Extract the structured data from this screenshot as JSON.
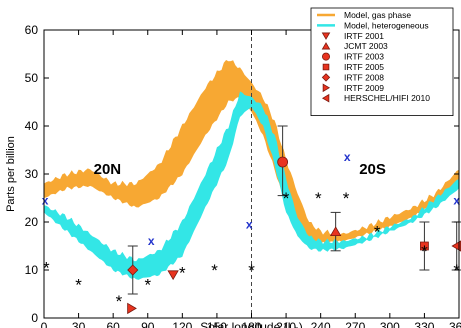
{
  "chart_data": {
    "type": "area",
    "xlabel": "Solar longitude (Lₛ)",
    "ylabel": "Parts per billion",
    "xlim": [
      0,
      360
    ],
    "ylim": [
      0,
      60
    ],
    "xticks": [
      0,
      30,
      60,
      90,
      120,
      150,
      180,
      210,
      240,
      270,
      300,
      330,
      360
    ],
    "yticks": [
      0,
      10,
      20,
      30,
      40,
      50,
      60
    ],
    "grid": false,
    "legend_position": "top-right",
    "colors": {
      "gas_band": "#F7A833",
      "het_band": "#33E6E6",
      "obs_marker": "#E8331F",
      "x_marker": "#2233CC",
      "star_marker": "#000000",
      "divider": "#444444"
    },
    "annotations": [
      {
        "text": "20N",
        "x": 55,
        "y": 30
      },
      {
        "text": "20S",
        "x": 285,
        "y": 30
      }
    ],
    "divider_x": 180,
    "series": [
      {
        "name": "Model, gas phase",
        "kind": "band",
        "x": [
          0,
          20,
          40,
          60,
          80,
          100,
          120,
          140,
          160,
          170,
          180,
          190,
          200,
          210,
          220,
          230,
          240,
          260,
          280,
          300,
          320,
          340,
          360
        ],
        "upper": [
          28,
          30,
          31,
          28,
          28,
          32,
          40,
          48,
          54,
          52,
          49,
          46,
          41,
          33,
          26,
          20,
          18,
          17.5,
          19,
          21,
          23,
          26,
          31
        ],
        "lower": [
          25,
          27,
          27.5,
          25,
          23,
          25,
          30,
          38,
          45,
          46,
          43,
          38,
          31,
          23,
          17,
          15.5,
          15.5,
          16,
          17.5,
          19,
          21,
          24,
          28
        ]
      },
      {
        "name": "Model, heterogeneous",
        "kind": "band",
        "x": [
          0,
          20,
          40,
          60,
          80,
          100,
          120,
          140,
          160,
          170,
          180,
          190,
          200,
          210,
          220,
          230,
          240,
          260,
          280,
          300,
          320,
          340,
          360
        ],
        "upper": [
          23.5,
          21,
          17.5,
          14,
          12,
          14,
          20,
          30,
          40,
          47,
          46,
          44,
          38,
          29,
          21,
          17,
          16,
          16,
          17,
          19,
          21,
          25,
          29
        ],
        "lower": [
          22,
          18,
          14,
          10,
          8,
          9,
          13,
          23,
          33,
          42,
          44,
          40,
          32,
          22,
          17,
          14.5,
          14,
          14.5,
          16,
          18,
          20,
          23,
          27
        ]
      },
      {
        "name": "IRTF 2001",
        "kind": "marker",
        "shape": "triangle-down",
        "points": [
          {
            "x": 112,
            "y": 9,
            "yerr_low": 0,
            "yerr_high": 0
          }
        ]
      },
      {
        "name": "JCMT 2003",
        "kind": "marker",
        "shape": "triangle-up",
        "points": [
          {
            "x": 253,
            "y": 18,
            "yerr_low": 4,
            "yerr_high": 4
          }
        ]
      },
      {
        "name": "IRTF 2003",
        "kind": "marker",
        "shape": "circle",
        "points": [
          {
            "x": 207,
            "y": 32.5,
            "yerr_low": 7,
            "yerr_high": 7.5
          }
        ]
      },
      {
        "name": "IRTF 2005",
        "kind": "marker",
        "shape": "square",
        "points": [
          {
            "x": 330,
            "y": 15,
            "yerr_low": 5,
            "yerr_high": 5
          }
        ]
      },
      {
        "name": "IRTF 2008",
        "kind": "marker",
        "shape": "diamond",
        "points": [
          {
            "x": 77,
            "y": 10,
            "yerr_low": 5,
            "yerr_high": 5
          }
        ]
      },
      {
        "name": "IRTF 2009",
        "kind": "marker",
        "shape": "triangle-right",
        "points": [
          {
            "x": 76,
            "y": 2,
            "yerr_low": 0,
            "yerr_high": 0
          }
        ]
      },
      {
        "name": "HERSCHEL/HIFI 2010",
        "kind": "marker",
        "shape": "triangle-left",
        "points": [
          {
            "x": 358,
            "y": 15,
            "yerr_low": 5,
            "yerr_high": 5
          }
        ]
      },
      {
        "name": "",
        "kind": "symbol",
        "shape": "star",
        "points": [
          [
            2,
            10.5
          ],
          [
            30,
            7
          ],
          [
            65,
            3.5
          ],
          [
            90,
            7
          ],
          [
            120,
            9.5
          ],
          [
            148,
            10
          ],
          [
            180,
            10
          ],
          [
            210,
            25
          ],
          [
            238,
            25
          ],
          [
            262,
            25
          ],
          [
            289,
            18
          ],
          [
            330,
            14
          ],
          [
            358,
            10
          ]
        ]
      },
      {
        "name": "",
        "kind": "symbol",
        "shape": "x",
        "points": [
          [
            1,
            24.5
          ],
          [
            93,
            16
          ],
          [
            178,
            19.5
          ],
          [
            263,
            33.5
          ],
          [
            358,
            24.5
          ]
        ]
      }
    ]
  }
}
